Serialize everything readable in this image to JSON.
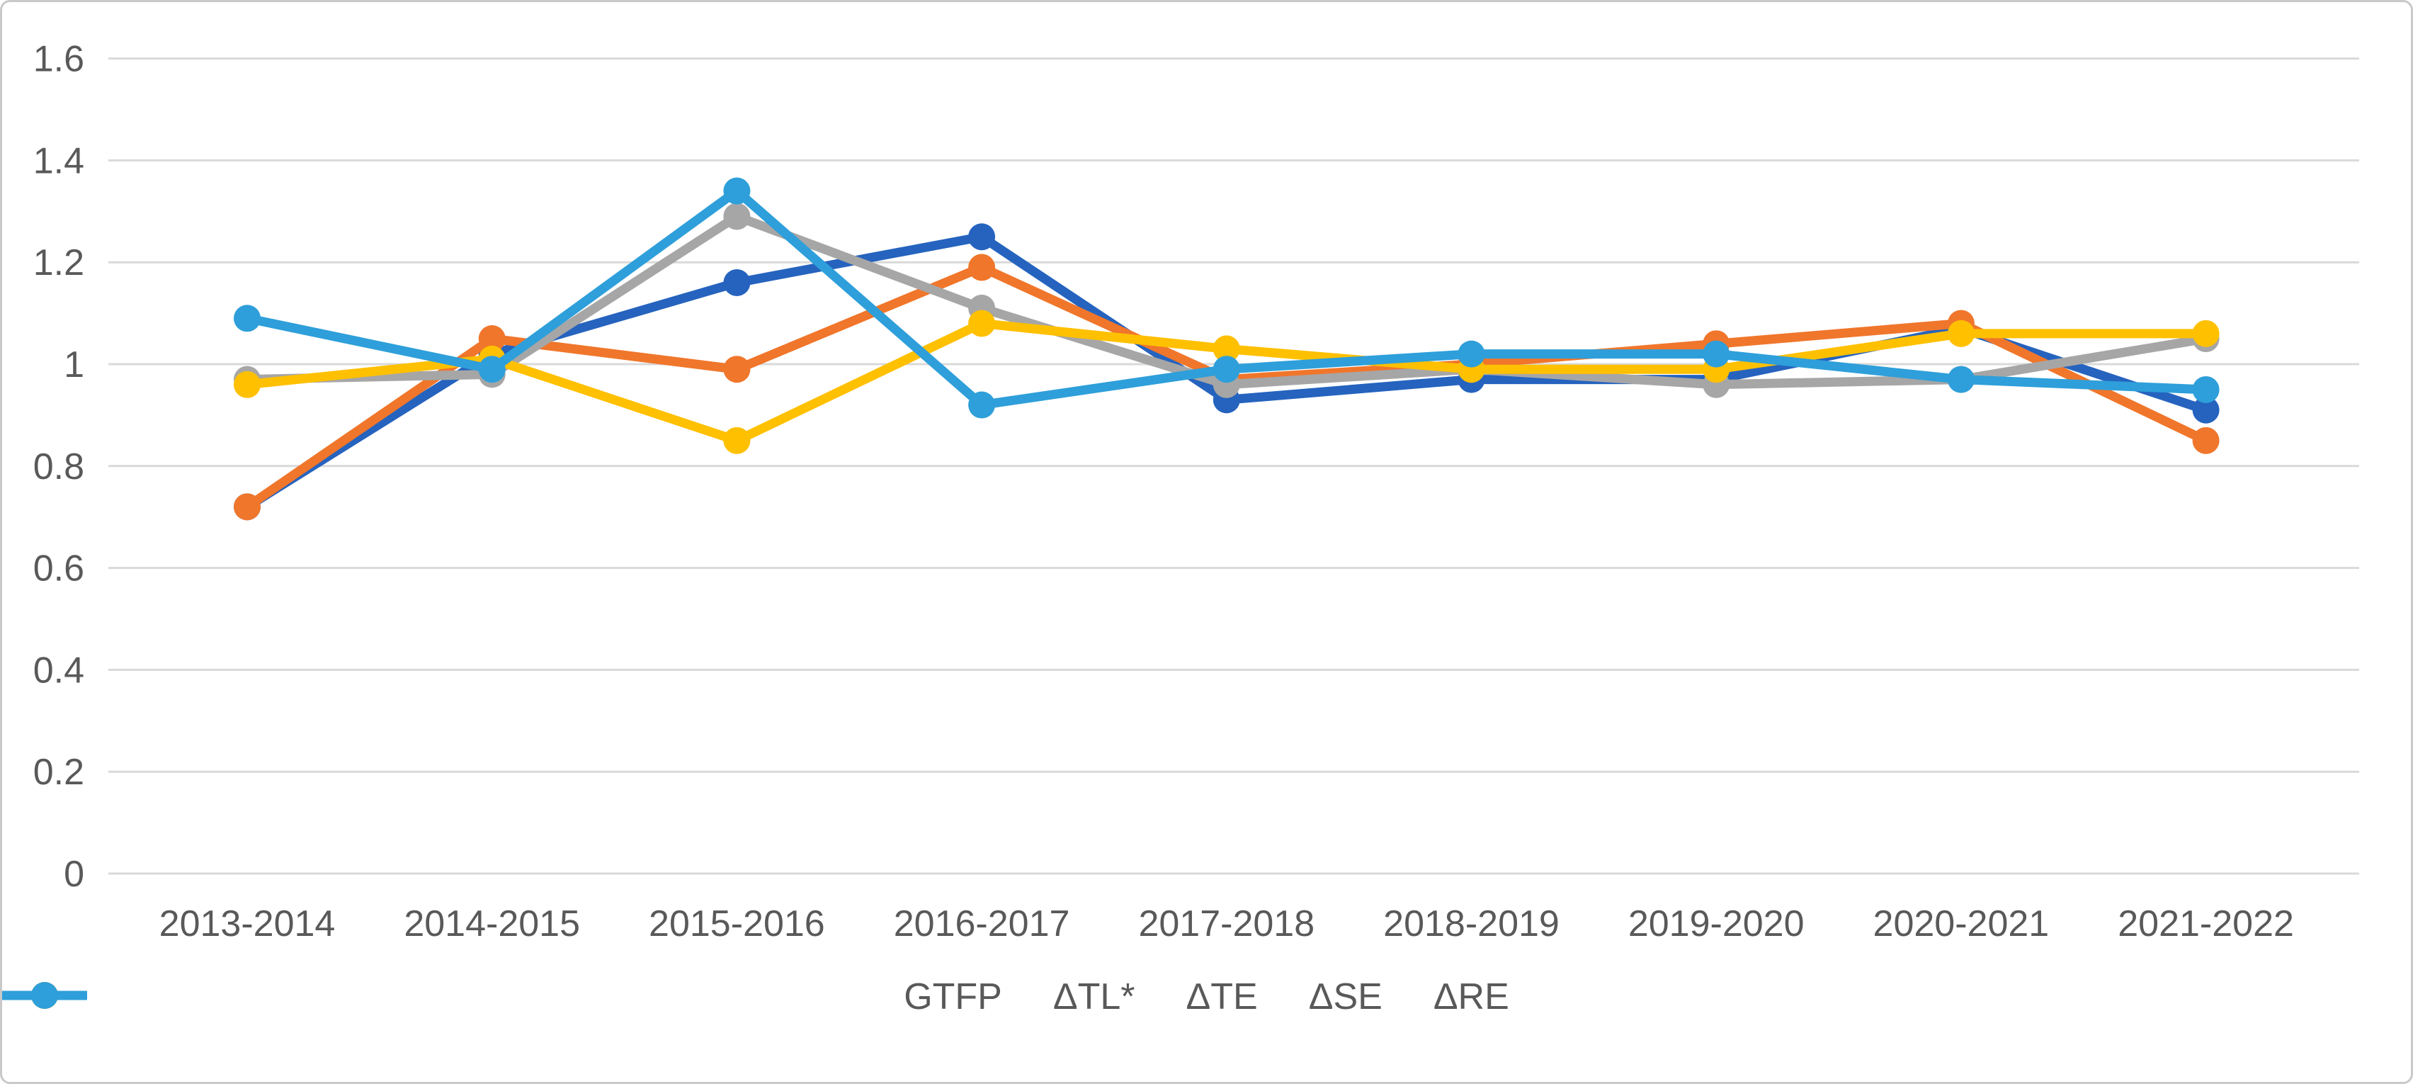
{
  "figure": {
    "background": "#ffffff",
    "border_color": "#c9c9c9",
    "text_color": "#595959",
    "gridline_color": "#d9d9d9"
  },
  "chart_data": {
    "type": "line",
    "title": "",
    "xlabel": "",
    "ylabel": "",
    "categories": [
      "2013-2014",
      "2014-2015",
      "2015-2016",
      "2016-2017",
      "2017-2018",
      "2018-2019",
      "2019-2020",
      "2020-2021",
      "2021-2022"
    ],
    "series": [
      {
        "name": "GTFP",
        "color": "#2563be",
        "values": [
          0.72,
          1.02,
          1.16,
          1.25,
          0.93,
          0.97,
          0.97,
          1.07,
          0.91
        ]
      },
      {
        "name": "ΔTL*",
        "color": "#f0762b",
        "values": [
          0.72,
          1.05,
          0.99,
          1.19,
          0.97,
          1.0,
          1.04,
          1.08,
          0.85
        ]
      },
      {
        "name": "ΔTE",
        "color": "#a6a6a6",
        "values": [
          0.97,
          0.98,
          1.29,
          1.11,
          0.96,
          0.99,
          0.96,
          0.97,
          1.05
        ]
      },
      {
        "name": "ΔSE",
        "color": "#ffc000",
        "values": [
          0.96,
          1.01,
          0.85,
          1.08,
          1.03,
          0.99,
          0.99,
          1.06,
          1.06
        ]
      },
      {
        "name": "ΔRE",
        "color": "#2e9fda",
        "values": [
          1.09,
          0.99,
          1.34,
          0.92,
          0.99,
          1.02,
          1.02,
          0.97,
          0.95
        ]
      }
    ],
    "y_ticks": [
      "0",
      "0.2",
      "0.4",
      "0.6",
      "0.8",
      "1",
      "1.2",
      "1.4",
      "1.6"
    ],
    "y_tick_values": [
      0,
      0.2,
      0.4,
      0.6,
      0.8,
      1,
      1.2,
      1.4,
      1.6
    ],
    "ylim": [
      0,
      1.6
    ],
    "grid": "horizontal",
    "legend_position": "bottom-center",
    "legend": [
      "GTFP",
      "ΔTL*",
      "ΔTE",
      "ΔSE",
      "ΔRE"
    ]
  }
}
